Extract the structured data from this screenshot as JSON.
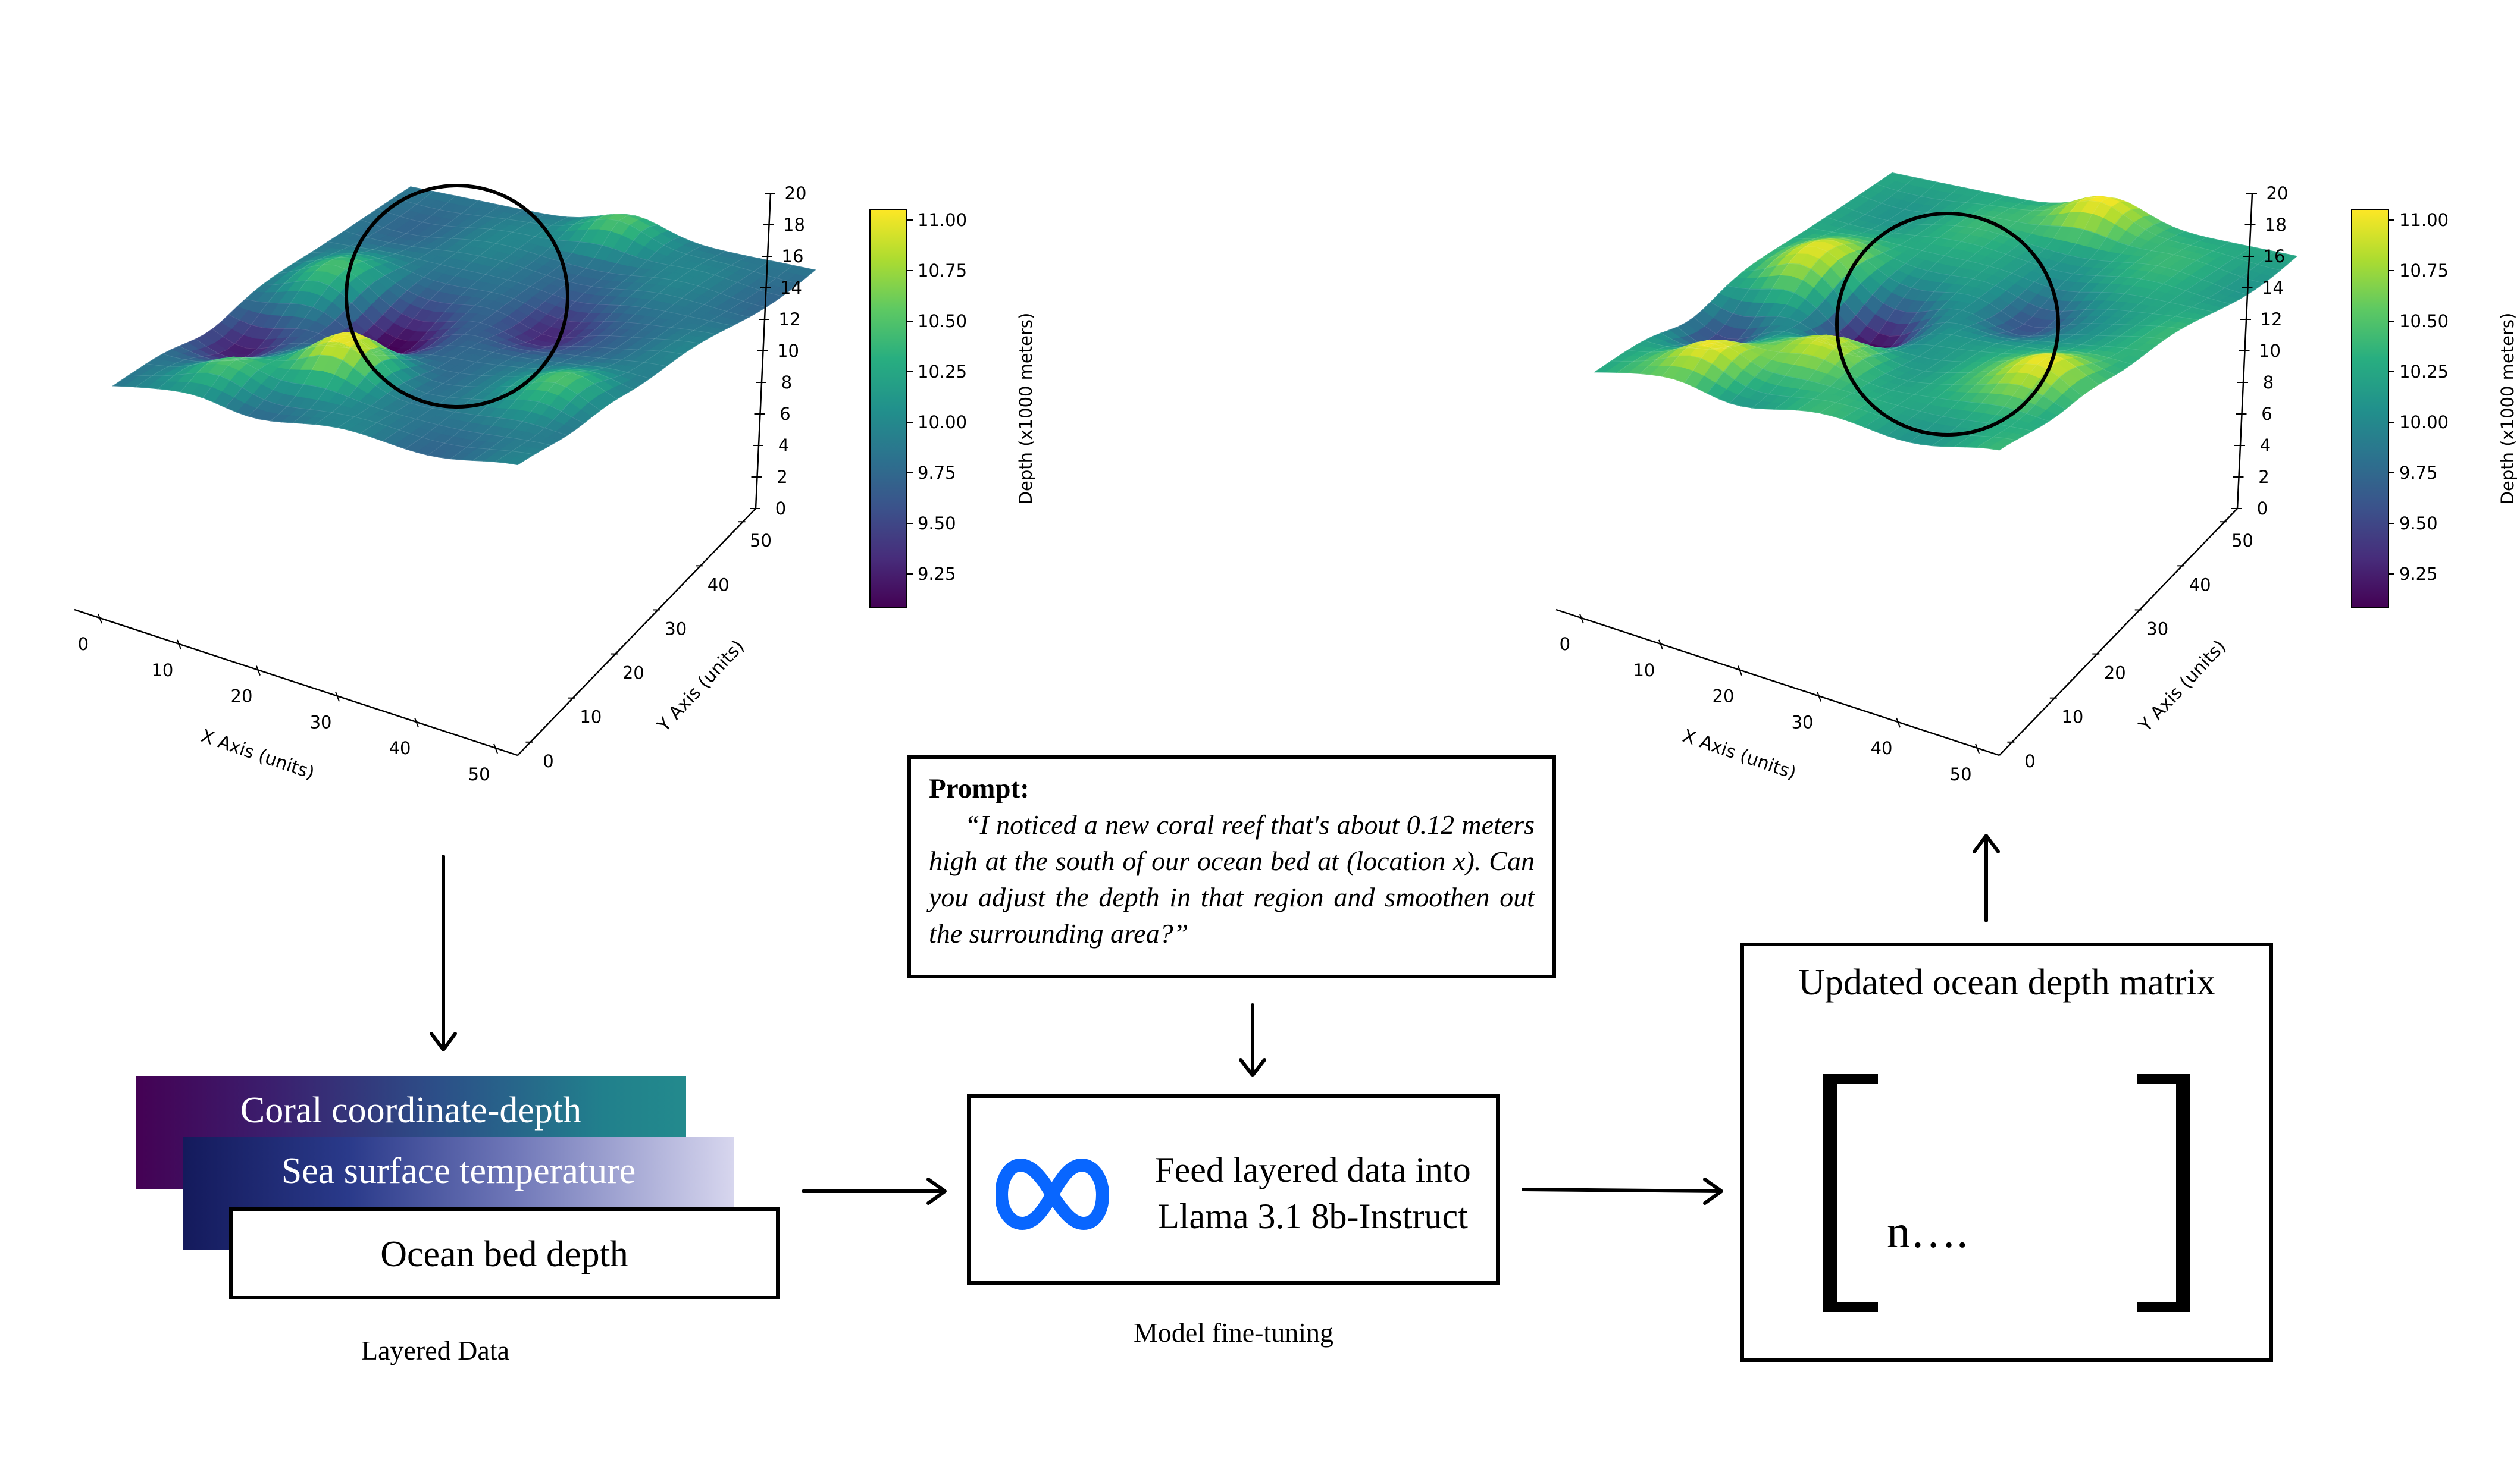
{
  "plots": {
    "left": {
      "x_axis_label": "X Axis (units)",
      "y_axis_label": "Y Axis (units)",
      "x_ticks": [
        "0",
        "10",
        "20",
        "30",
        "40",
        "50"
      ],
      "y_ticks": [
        "0",
        "10",
        "20",
        "30",
        "40",
        "50"
      ],
      "z_ticks": [
        "0",
        "2",
        "4",
        "6",
        "8",
        "10",
        "12",
        "14",
        "16",
        "18",
        "20"
      ],
      "colorbar_label": "Depth (x1000 meters)",
      "colorbar_ticks": [
        "9.25",
        "9.50",
        "9.75",
        "10.00",
        "10.25",
        "10.50",
        "10.75",
        "11.00"
      ]
    },
    "right": {
      "x_axis_label": "X Axis (units)",
      "y_axis_label": "Y Axis (units)",
      "x_ticks": [
        "0",
        "10",
        "20",
        "30",
        "40",
        "50"
      ],
      "y_ticks": [
        "0",
        "10",
        "20",
        "30",
        "40",
        "50"
      ],
      "z_ticks": [
        "0",
        "2",
        "4",
        "6",
        "8",
        "10",
        "12",
        "14",
        "16",
        "18",
        "20"
      ],
      "colorbar_label": "Depth (x1000 meters)",
      "colorbar_ticks": [
        "9.25",
        "9.50",
        "9.75",
        "10.00",
        "10.25",
        "10.50",
        "10.75",
        "11.00"
      ]
    },
    "colormap": [
      "#440154",
      "#472d7b",
      "#3b528b",
      "#2c728e",
      "#21918c",
      "#28ae80",
      "#5ec962",
      "#addc30",
      "#fde725"
    ]
  },
  "layers": {
    "coral": "Coral coordinate-depth",
    "sst": "Sea surface temperature",
    "ocean_bed": "Ocean bed depth",
    "caption": "Layered Data"
  },
  "prompt": {
    "title": "Prompt:",
    "text": "“I noticed a new coral reef that's about 0.12 meters high at the south of our ocean bed at (location x). Can you adjust the depth in that region and smoothen out the surrounding area?”"
  },
  "model": {
    "line1": "Feed layered data into",
    "line2": "Llama 3.1 8b-Instruct",
    "caption": "Model fine-tuning",
    "logo_icon": "meta-infinity-icon",
    "logo_color": "#0866ff"
  },
  "matrix": {
    "title": "Updated ocean depth matrix",
    "content": "n…."
  }
}
